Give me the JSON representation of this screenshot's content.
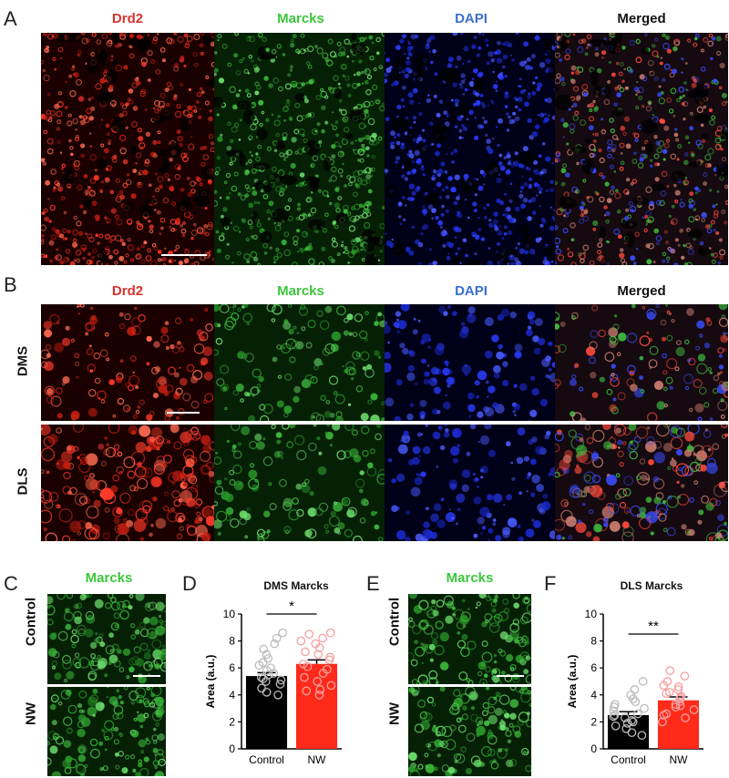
{
  "panelA": {
    "letter": "A",
    "channels": [
      {
        "label": "Drd2",
        "color": "#d8322c",
        "tone": "red"
      },
      {
        "label": "Marcks",
        "color": "#3cc63c",
        "tone": "green"
      },
      {
        "label": "DAPI",
        "color": "#3a6fd1",
        "tone": "blue"
      },
      {
        "label": "Merged",
        "color": "#111111",
        "tone": "merged"
      }
    ]
  },
  "panelB": {
    "letter": "B",
    "channels": [
      {
        "label": "Drd2",
        "color": "#d8322c",
        "tone": "red"
      },
      {
        "label": "Marcks",
        "color": "#3cc63c",
        "tone": "green"
      },
      {
        "label": "DAPI",
        "color": "#3a6fd1",
        "tone": "blue"
      },
      {
        "label": "Merged",
        "color": "#111111",
        "tone": "merged"
      }
    ],
    "rows": [
      "DMS",
      "DLS"
    ]
  },
  "panelC": {
    "letter": "C",
    "title": "Marcks",
    "title_color": "#3cc63c",
    "rows": [
      "Control",
      "NW"
    ]
  },
  "panelE": {
    "letter": "E",
    "title": "Marcks",
    "title_color": "#3cc63c",
    "rows": [
      "Control",
      "NW"
    ]
  },
  "panelD": {
    "letter": "D"
  },
  "panelF": {
    "letter": "F"
  },
  "chart_data": [
    {
      "type": "bar",
      "title": "DMS Marcks",
      "ylabel": "Area (a.u.)",
      "categories": [
        "Control",
        "NW"
      ],
      "values": [
        5.4,
        6.3
      ],
      "errors": [
        0.25,
        0.3
      ],
      "ylim": [
        0,
        10
      ],
      "yticks": [
        0,
        2,
        4,
        6,
        8,
        10
      ],
      "bar_colors": [
        "#000000",
        "#ff2a1a"
      ],
      "point_colors": [
        "#bbbbbb",
        "#f4a0a0"
      ],
      "points": [
        [
          4.0,
          4.2,
          4.5,
          4.8,
          5.0,
          5.1,
          5.2,
          5.3,
          5.5,
          5.6,
          5.8,
          6.0,
          6.2,
          6.4,
          6.7,
          7.0,
          7.4,
          7.8,
          8.2,
          8.6
        ],
        [
          4.0,
          4.3,
          4.7,
          5.0,
          5.3,
          5.6,
          5.9,
          6.1,
          6.3,
          6.6,
          6.8,
          7.0,
          7.2,
          7.5,
          7.8,
          8.0,
          8.2,
          8.5,
          8.6,
          4.4
        ]
      ],
      "significance": "*"
    },
    {
      "type": "bar",
      "title": "DLS Marcks",
      "ylabel": "Area (a.u.)",
      "categories": [
        "Control",
        "NW"
      ],
      "values": [
        2.5,
        3.6
      ],
      "errors": [
        0.25,
        0.25
      ],
      "ylim": [
        0,
        10
      ],
      "yticks": [
        0,
        2,
        4,
        6,
        8,
        10
      ],
      "bar_colors": [
        "#000000",
        "#ff2a1a"
      ],
      "point_colors": [
        "#bbbbbb",
        "#f4a0a0"
      ],
      "points": [
        [
          1.2,
          1.5,
          1.7,
          1.9,
          2.0,
          2.1,
          2.3,
          2.4,
          2.5,
          2.6,
          2.8,
          3.0,
          3.1,
          3.3,
          3.5,
          3.7,
          4.0,
          4.4,
          5.0,
          1.0
        ],
        [
          2.0,
          2.3,
          2.6,
          2.9,
          3.1,
          3.3,
          3.5,
          3.7,
          3.9,
          4.1,
          4.4,
          4.7,
          5.0,
          5.4,
          5.8,
          2.5,
          3.2,
          3.8,
          4.2,
          4.6
        ]
      ],
      "significance": "**"
    }
  ]
}
